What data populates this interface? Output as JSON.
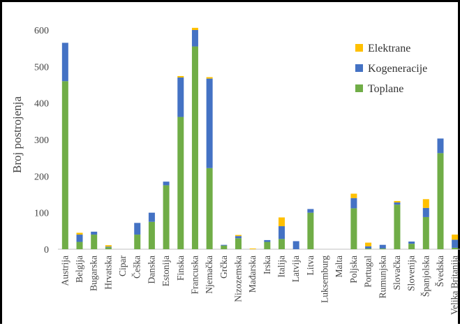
{
  "chart_data": {
    "type": "bar",
    "stacked": true,
    "ylabel": "Broj postrojenja",
    "xlabel": "",
    "ylim": [
      0,
      600
    ],
    "yticks": [
      0,
      100,
      200,
      300,
      400,
      500,
      600
    ],
    "grid": false,
    "legend_position": "top-right",
    "categories": [
      "Austrija",
      "Belgija",
      "Bugarska",
      "Hrvatska",
      "Cipar",
      "Češka",
      "Danska",
      "Estonija",
      "Finska",
      "Francuska",
      "Njemačka",
      "Grčka",
      "Nizozemska",
      "Mađarska",
      "Irska",
      "Italija",
      "Latvija",
      "Litva",
      "Luksemburg",
      "Malta",
      "Poljska",
      "Portugal",
      "Rumunjska",
      "Slovačka",
      "Slovenija",
      "Španjolska",
      "Švedska",
      "Velika Britanija"
    ],
    "series": [
      {
        "name": "Toplane",
        "color": "#70ad47",
        "values": [
          460,
          20,
          40,
          5,
          0,
          40,
          75,
          175,
          362,
          555,
          222,
          10,
          30,
          0,
          20,
          28,
          0,
          100,
          0,
          0,
          112,
          2,
          2,
          122,
          15,
          88,
          263,
          4
        ]
      },
      {
        "name": "Kogeneracije",
        "color": "#4472c4",
        "values": [
          105,
          20,
          8,
          2,
          0,
          32,
          25,
          10,
          108,
          45,
          245,
          2,
          6,
          0,
          5,
          35,
          22,
          10,
          0,
          0,
          28,
          6,
          10,
          6,
          6,
          25,
          40,
          22
        ]
      },
      {
        "name": "Elektrane",
        "color": "#ffc000",
        "values": [
          0,
          5,
          0,
          4,
          0,
          0,
          0,
          0,
          4,
          6,
          4,
          0,
          3,
          2,
          0,
          24,
          0,
          0,
          0,
          0,
          12,
          10,
          0,
          4,
          0,
          24,
          0,
          14
        ]
      }
    ],
    "legend_order": [
      "Elektrane",
      "Kogeneracije",
      "Toplane"
    ]
  }
}
